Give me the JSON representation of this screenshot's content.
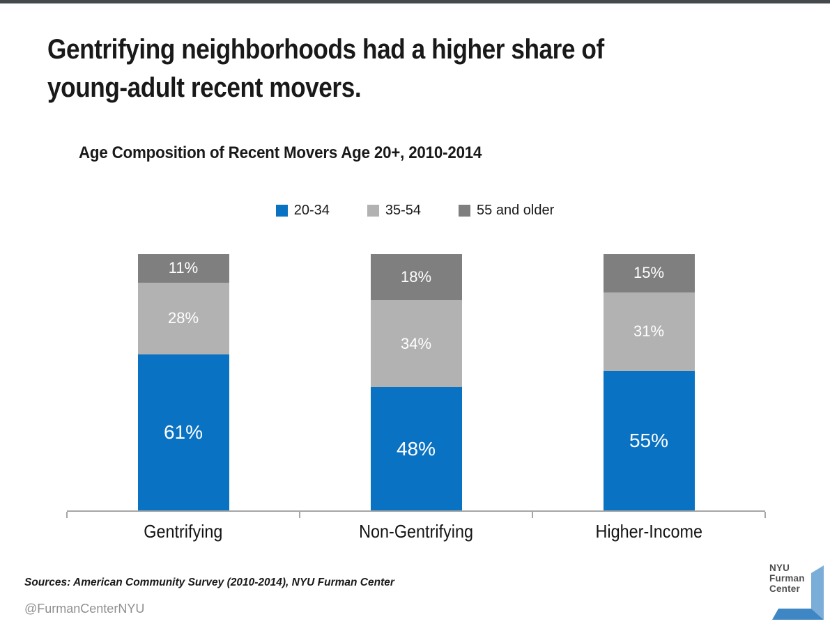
{
  "page": {
    "title_lines": [
      "Gentrifying neighborhoods had a higher share of",
      "young-adult recent movers."
    ],
    "top_strip_color": "#46494c"
  },
  "chart_data": {
    "type": "bar",
    "stacked": true,
    "percent_stacked": true,
    "title": "Age Composition of Recent Movers Age 20+, 2010-2014",
    "categories": [
      "Gentrifying",
      "Non-Gentrifying",
      "Higher-Income"
    ],
    "series": [
      {
        "name": "20-34",
        "color": "#0a72c2",
        "values": [
          61,
          48,
          55
        ]
      },
      {
        "name": "35-54",
        "color": "#b2b2b2",
        "values": [
          28,
          34,
          31
        ]
      },
      {
        "name": "55 and older",
        "color": "#7f7f7f",
        "values": [
          11,
          18,
          15
        ]
      }
    ],
    "value_label_format": "{v}%",
    "value_label_color": "#ffffff",
    "legend_position": "top",
    "axis_color": "#a6a6a6",
    "grid": false,
    "ylim": [
      0,
      100
    ]
  },
  "footer": {
    "sources": "Sources: American Community Survey (2010-2014), NYU Furman Center",
    "handle": "@FurmanCenterNYU"
  },
  "logo": {
    "lines": [
      "NYU",
      "Furman",
      "Center"
    ],
    "text_color": "#4f4f51",
    "bracket_light": "#7badd9",
    "bracket_dark": "#3e86c4"
  }
}
